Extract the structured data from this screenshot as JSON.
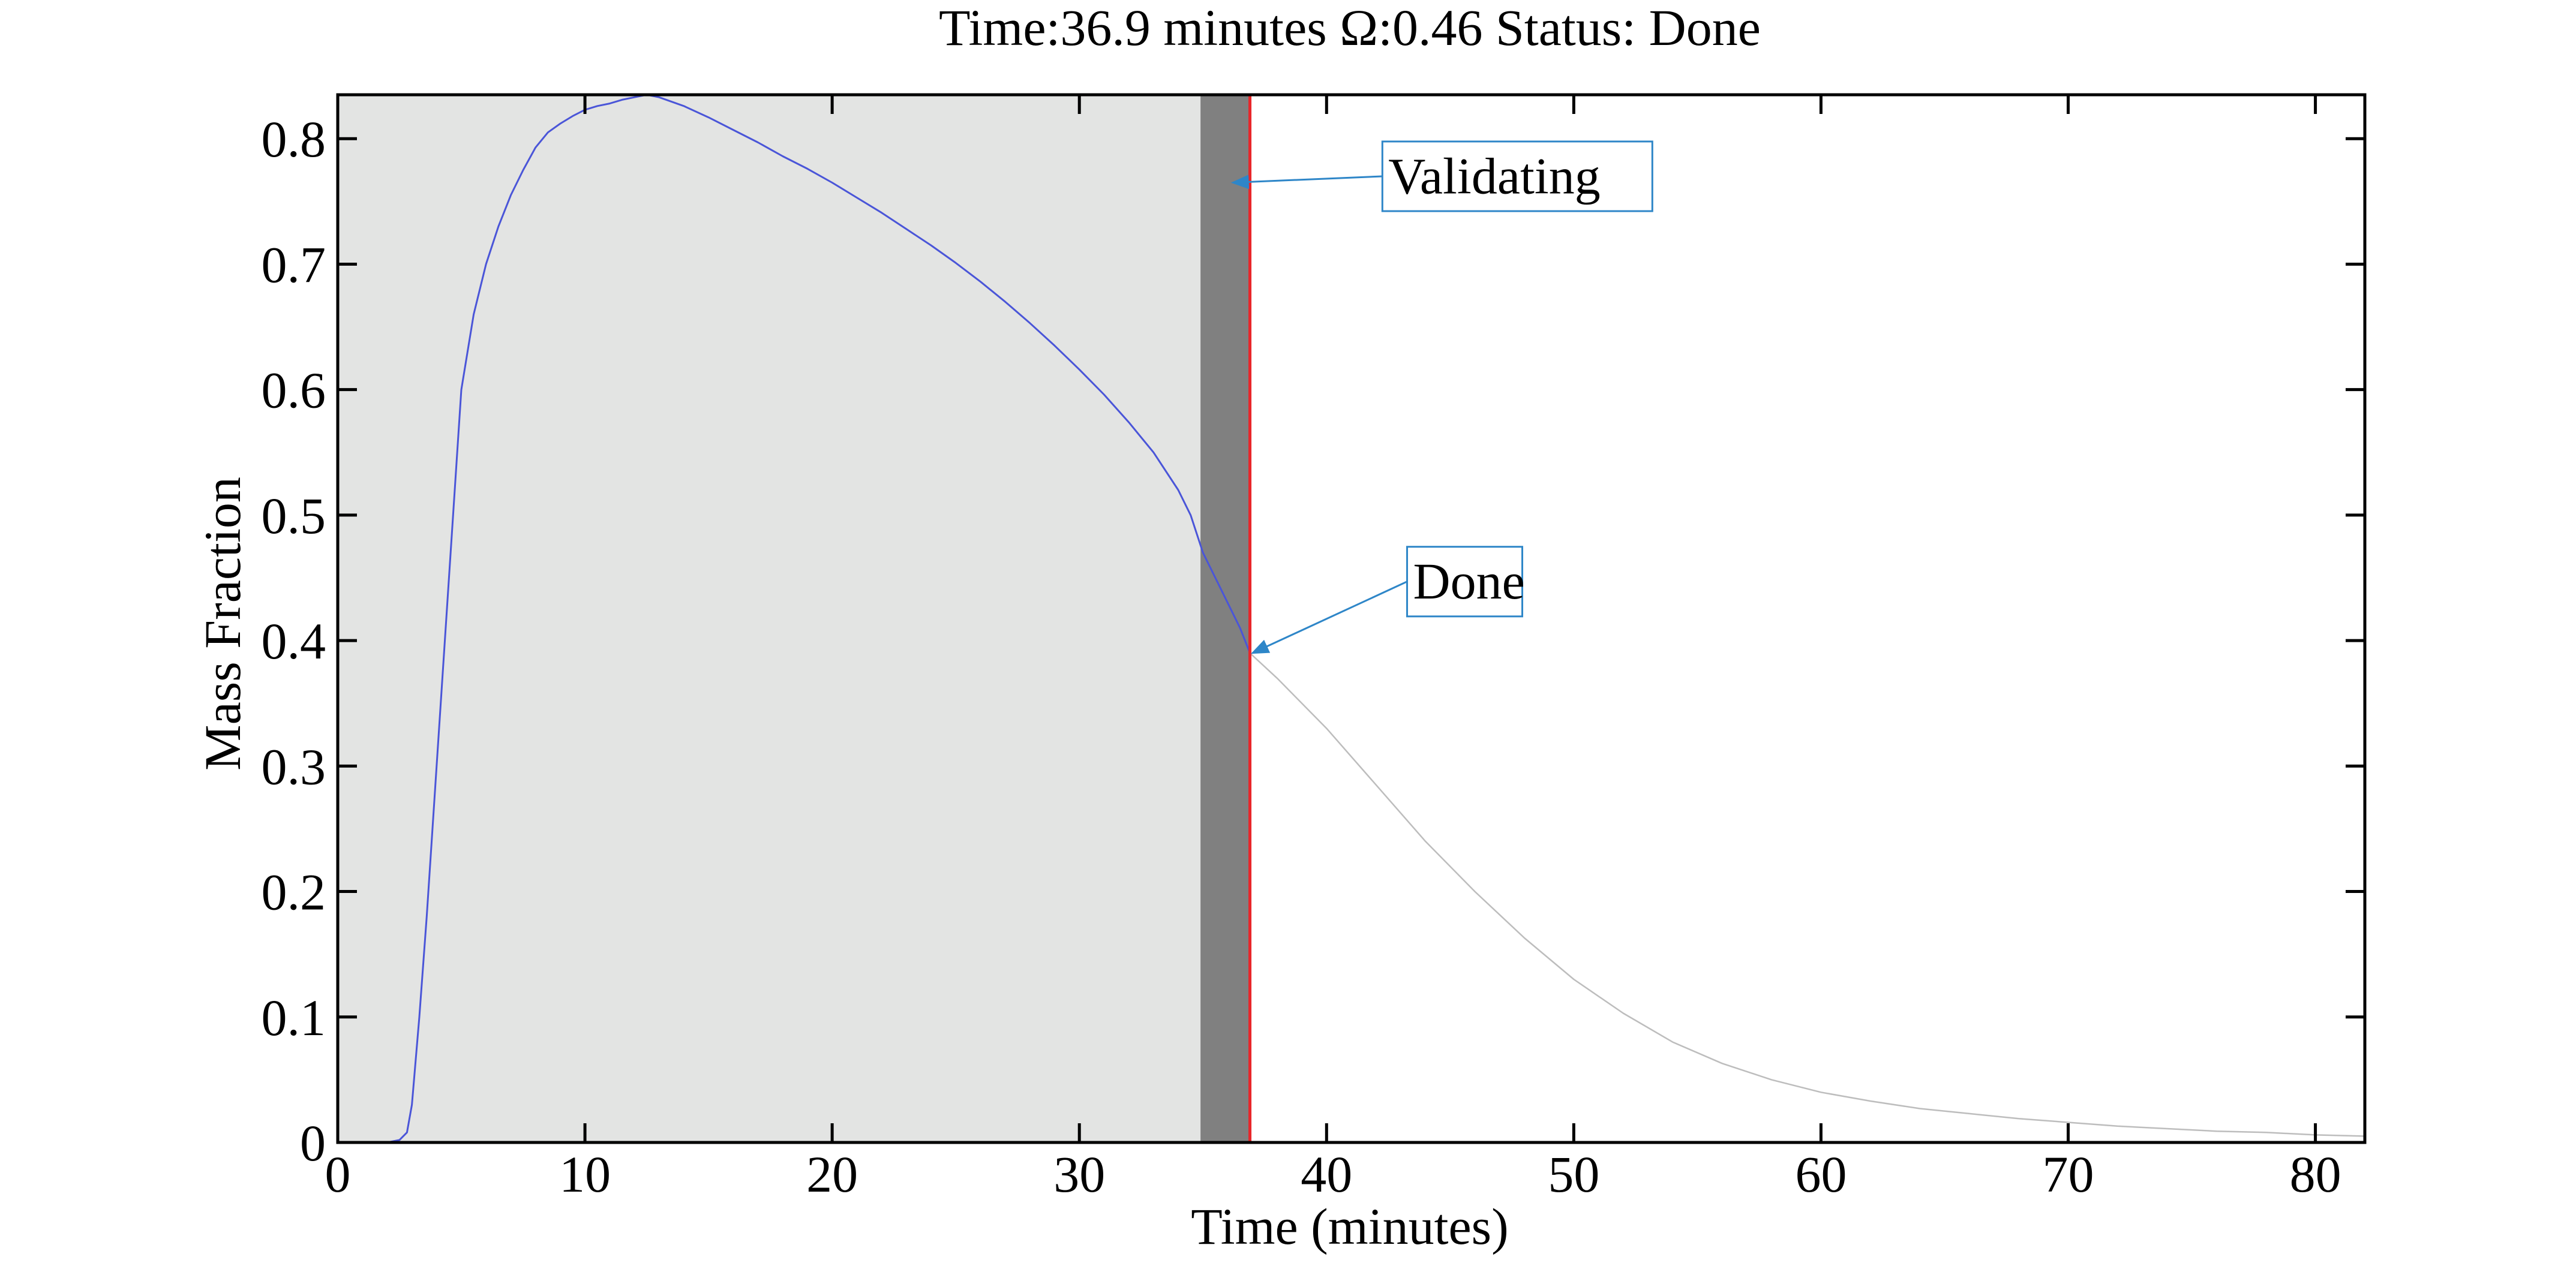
{
  "colors": {
    "background": "#ffffff",
    "elapsed_region": "#e3e4e3",
    "validating_region": "#808080",
    "current_time_line": "#e8262a",
    "past_curve": "#4a55d8",
    "future_curve": "#bdbdbd",
    "annotation": "#2e86c8"
  },
  "chart_data": {
    "type": "line",
    "title": "Time:36.9 minutes Ω:0.46 Status: Done",
    "xlabel": "Time (minutes)",
    "ylabel": "Mass Fraction",
    "xlim": [
      0,
      82
    ],
    "ylim": [
      0,
      0.835
    ],
    "xticks": [
      0,
      10,
      20,
      30,
      40,
      50,
      60,
      70,
      80
    ],
    "yticks": [
      0,
      0.1,
      0.2,
      0.3,
      0.4,
      0.5,
      0.6,
      0.7,
      0.8
    ],
    "grid": false,
    "box": true,
    "regions": [
      {
        "x_start": 0,
        "x_end": 34.9,
        "color_key": "elapsed_region"
      },
      {
        "x_start": 34.9,
        "x_end": 36.9,
        "color_key": "validating_region"
      }
    ],
    "current_time": 36.9,
    "series": [
      {
        "style": "solid",
        "color_key": "past_curve",
        "x": [
          0,
          2,
          2.5,
          2.8,
          3.0,
          3.3,
          3.6,
          4.0,
          4.5,
          5.0,
          5.5,
          6.0,
          6.5,
          7.0,
          7.5,
          8.0,
          8.5,
          9.0,
          9.5,
          10.0,
          10.5,
          11.0,
          11.5,
          12.0,
          12.5,
          13.0,
          14,
          15,
          16,
          17,
          18,
          19,
          20,
          21,
          22,
          23,
          24,
          25,
          26,
          27,
          28,
          29,
          30,
          31,
          32,
          33,
          34,
          34.5,
          35,
          35.5,
          36,
          36.5,
          36.9
        ],
        "y": [
          0,
          0,
          0.002,
          0.008,
          0.03,
          0.1,
          0.18,
          0.3,
          0.45,
          0.6,
          0.66,
          0.7,
          0.73,
          0.755,
          0.775,
          0.793,
          0.805,
          0.812,
          0.818,
          0.823,
          0.826,
          0.828,
          0.831,
          0.833,
          0.835,
          0.833,
          0.826,
          0.817,
          0.807,
          0.797,
          0.786,
          0.776,
          0.765,
          0.753,
          0.741,
          0.728,
          0.715,
          0.701,
          0.686,
          0.67,
          0.653,
          0.635,
          0.616,
          0.596,
          0.574,
          0.55,
          0.52,
          0.5,
          0.47,
          0.45,
          0.43,
          0.41,
          0.39
        ]
      },
      {
        "style": "solid",
        "color_key": "future_curve",
        "x": [
          36.9,
          38,
          40,
          42,
          44,
          46,
          48,
          50,
          52,
          54,
          56,
          58,
          60,
          62,
          64,
          66,
          68,
          70,
          72,
          74,
          76,
          78,
          80,
          82
        ],
        "y": [
          0.39,
          0.37,
          0.33,
          0.285,
          0.24,
          0.2,
          0.163,
          0.13,
          0.103,
          0.08,
          0.063,
          0.05,
          0.04,
          0.033,
          0.027,
          0.023,
          0.019,
          0.016,
          0.013,
          0.011,
          0.009,
          0.008,
          0.006,
          0.005
        ]
      }
    ],
    "annotations": [
      {
        "text": "Validating",
        "arrow_to": [
          36.2,
          0.765
        ],
        "label_at": [
          42.5,
          0.77
        ]
      },
      {
        "text": "Done",
        "arrow_to": [
          37.0,
          0.39
        ],
        "label_at": [
          43.5,
          0.447
        ]
      }
    ]
  }
}
